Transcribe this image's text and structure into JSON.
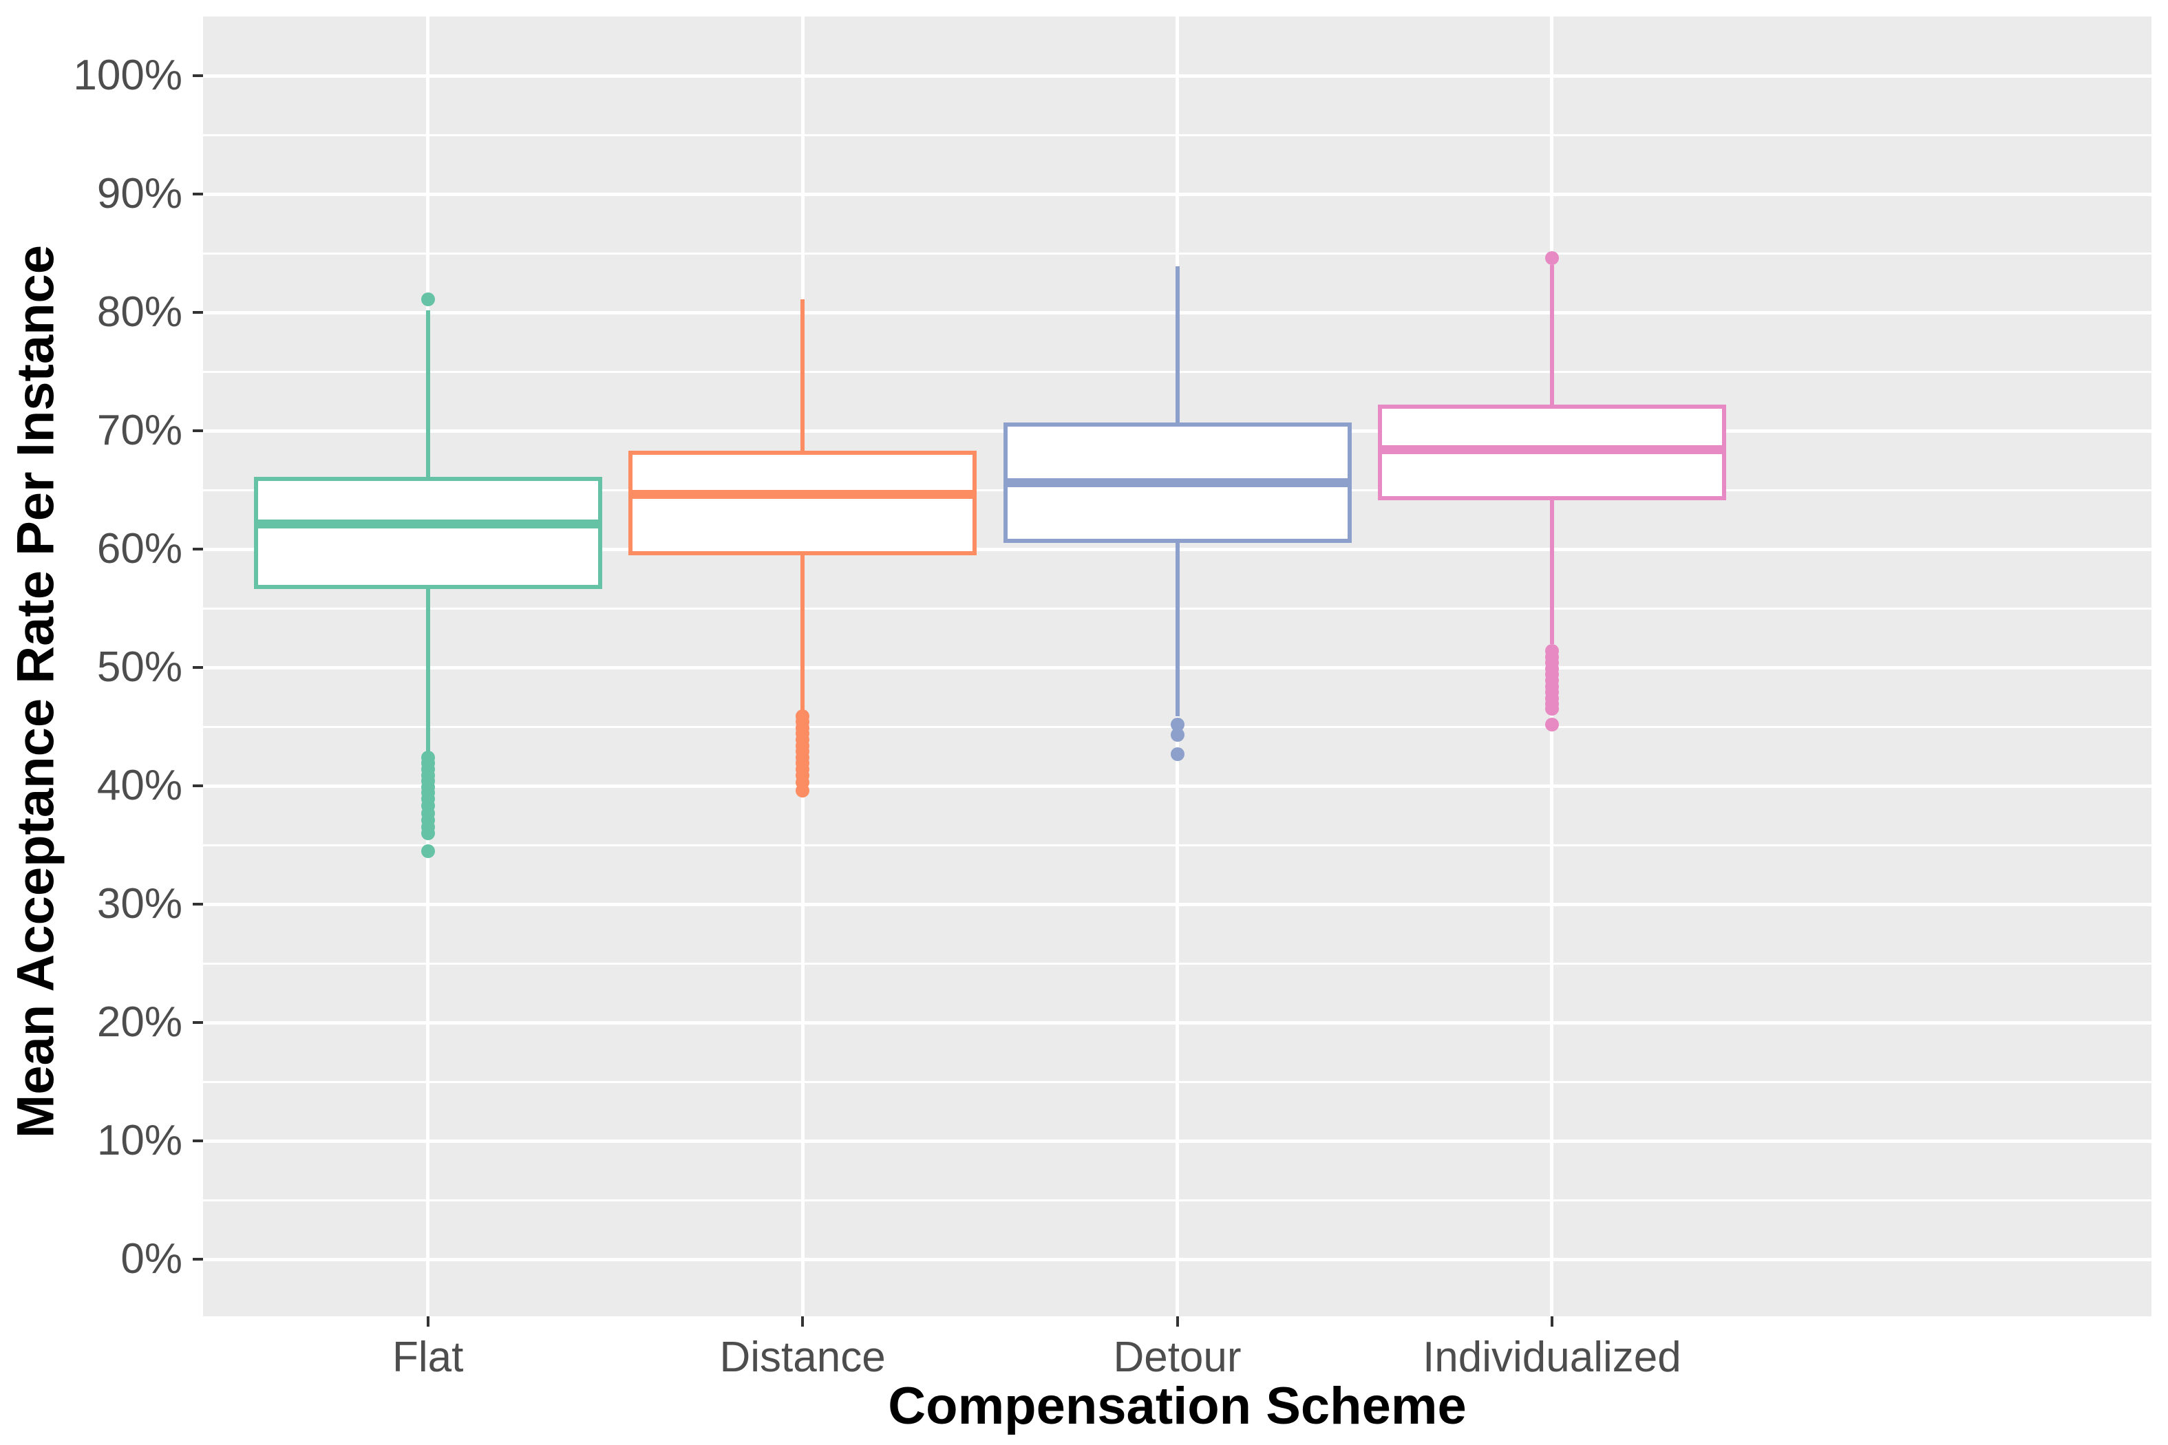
{
  "chart_data": {
    "type": "boxplot",
    "title": "",
    "xlabel": "Compensation Scheme",
    "ylabel": "Mean Acceptance Rate Per Instance",
    "categories": [
      "Flat",
      "Distance",
      "Detour",
      "Individualized"
    ],
    "y_axis": {
      "min": 0,
      "max": 100,
      "major_step": 10,
      "minor_step": 5,
      "unit": "%",
      "tick_labels": [
        "0%",
        "10%",
        "20%",
        "30%",
        "40%",
        "50%",
        "60%",
        "70%",
        "80%",
        "90%",
        "100%"
      ]
    },
    "legend": "none",
    "grid": "on",
    "panel_bg": "#EBEBEB",
    "grid_color": "#FFFFFF",
    "tick_text_color": "#4D4D4D",
    "axis_title_color": "#000000",
    "series": [
      {
        "label": "Flat",
        "color": "#66C2A5",
        "q1": 56.6,
        "median": 62.1,
        "q3": 66.1,
        "whisker_low": 42.8,
        "whisker_high": 80.2,
        "outliers_high": [
          81.1
        ],
        "outliers_low": [
          42.4,
          41.9,
          41.4,
          40.9,
          40.4,
          39.9,
          39.4,
          38.9,
          38.3,
          37.7,
          37.1,
          36.5,
          36.0,
          34.5
        ]
      },
      {
        "label": "Distance",
        "color": "#FC8D62",
        "q1": 59.5,
        "median": 64.6,
        "q3": 68.3,
        "whisker_low": 46.3,
        "whisker_high": 81.1,
        "outliers_high": [],
        "outliers_low": [
          45.9,
          45.4,
          44.9,
          44.4,
          43.9,
          43.4,
          42.9,
          42.4,
          41.9,
          41.4,
          40.9,
          40.3,
          39.6
        ]
      },
      {
        "label": "Detour",
        "color": "#8DA0CB",
        "q1": 60.5,
        "median": 65.6,
        "q3": 70.7,
        "whisker_low": 45.9,
        "whisker_high": 83.9,
        "outliers_high": [],
        "outliers_low": [
          45.2,
          44.3,
          42.7
        ]
      },
      {
        "label": "Individualized",
        "color": "#E78AC3",
        "q1": 64.1,
        "median": 68.4,
        "q3": 72.2,
        "whisker_low": 52.0,
        "whisker_high": 84.0,
        "outliers_high": [
          84.6
        ],
        "outliers_low": [
          51.4,
          50.9,
          50.4,
          49.9,
          49.4,
          48.9,
          48.4,
          47.9,
          47.4,
          46.9,
          46.5,
          45.2
        ]
      }
    ]
  }
}
